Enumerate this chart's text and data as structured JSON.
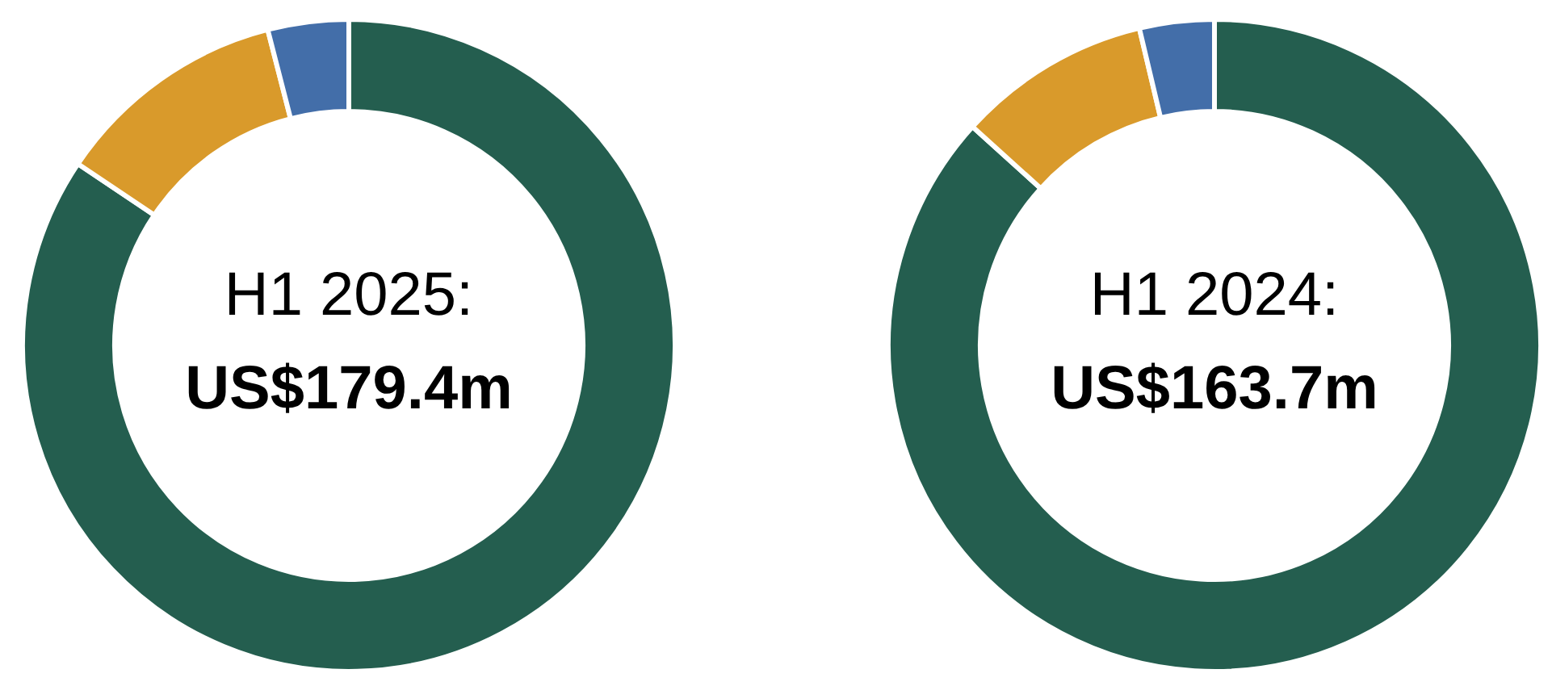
{
  "chart_data": [
    {
      "type": "donut",
      "title": "H1 2025:",
      "subtitle": "US$179.4m",
      "categories": [
        null,
        null,
        null
      ],
      "values": [
        84.4,
        11.6,
        4.0
      ],
      "colors": [
        "#245e4f",
        "#d99a2b",
        "#436ea9"
      ]
    },
    {
      "type": "donut",
      "title": "H1 2024:",
      "subtitle": "US$163.7m",
      "categories": [
        null,
        null,
        null
      ],
      "values": [
        86.7,
        9.6,
        3.7
      ],
      "colors": [
        "#245e4f",
        "#d99a2b",
        "#436ea9"
      ]
    }
  ]
}
